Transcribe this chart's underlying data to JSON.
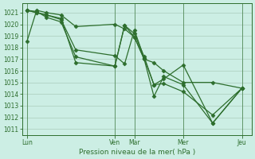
{
  "title": "Pression niveau de la mer( hPa )",
  "background_color": "#cceee4",
  "grid_color": "#aaccbb",
  "line_color": "#2d6e2d",
  "spine_color": "#2d6e2d",
  "ylim": [
    1010.5,
    1021.8
  ],
  "yticks": [
    1011,
    1012,
    1013,
    1014,
    1015,
    1016,
    1017,
    1018,
    1019,
    1020,
    1021
  ],
  "xtick_labels": [
    "Lun",
    "Ven",
    "Mar",
    "Mer",
    "Jeu"
  ],
  "xtick_positions": [
    0,
    18,
    22,
    32,
    44
  ],
  "xlim": [
    -1,
    46
  ],
  "series": [
    {
      "x": [
        0,
        2,
        4,
        7,
        10,
        18,
        20,
        22,
        24,
        26,
        28,
        32,
        38,
        44
      ],
      "y": [
        1018.5,
        1021.2,
        1021.0,
        1020.8,
        1019.8,
        1020.0,
        1019.6,
        1018.9,
        1017.0,
        1016.7,
        1016.0,
        1015.0,
        1015.0,
        1014.5
      ]
    },
    {
      "x": [
        0,
        2,
        4,
        7,
        10,
        18,
        20,
        22,
        24,
        26,
        28,
        32,
        38,
        44
      ],
      "y": [
        1021.2,
        1021.1,
        1020.6,
        1020.2,
        1017.2,
        1016.4,
        1019.9,
        1019.2,
        1017.2,
        1014.8,
        1015.3,
        1016.5,
        1011.5,
        1014.5
      ]
    },
    {
      "x": [
        0,
        2,
        4,
        7,
        10,
        18,
        20,
        22,
        24,
        26,
        28,
        32,
        38,
        44
      ],
      "y": [
        1021.2,
        1021.0,
        1020.8,
        1020.5,
        1016.7,
        1016.4,
        1019.9,
        1018.9,
        1017.0,
        1013.8,
        1015.5,
        1014.8,
        1011.5,
        1014.5
      ]
    },
    {
      "x": [
        0,
        2,
        4,
        7,
        10,
        18,
        20,
        22,
        24,
        26,
        28,
        32,
        38,
        44
      ],
      "y": [
        1021.2,
        1021.0,
        1020.8,
        1020.4,
        1017.8,
        1017.3,
        1016.6,
        1019.5,
        1017.1,
        1014.8,
        1014.9,
        1014.2,
        1012.2,
        1014.5
      ]
    }
  ],
  "marker": "D",
  "markersize": 2.5,
  "linewidth": 0.9,
  "ylabel_fontsize": 5.5,
  "xlabel_fontsize": 6.5,
  "tick_fontsize": 5.5
}
